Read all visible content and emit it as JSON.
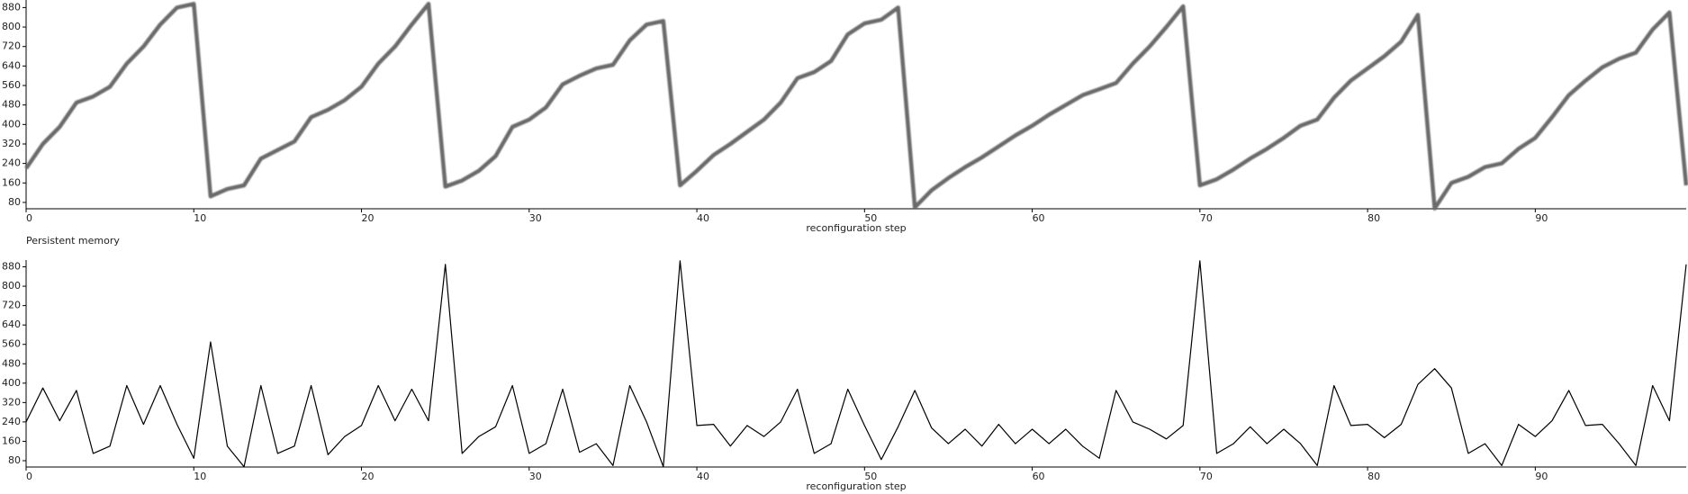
{
  "chart_data": [
    {
      "type": "line",
      "xlabel": "reconfiguration step",
      "color": "#6a6a6a",
      "x": [
        0,
        1,
        2,
        3,
        4,
        5,
        6,
        7,
        8,
        9,
        10,
        11,
        12,
        13,
        14,
        15,
        16,
        17,
        18,
        19,
        20,
        21,
        22,
        23,
        24,
        25,
        26,
        27,
        28,
        29,
        30,
        31,
        32,
        33,
        34,
        35,
        36,
        37,
        38,
        39,
        40,
        41,
        42,
        43,
        44,
        45,
        46,
        47,
        48,
        49,
        50,
        51,
        52,
        53,
        54,
        55,
        56,
        57,
        58,
        59,
        60,
        61,
        62,
        63,
        64,
        65,
        66,
        67,
        68,
        69,
        70,
        71,
        72,
        73,
        74,
        75,
        76,
        77,
        78,
        79,
        80,
        81,
        82,
        83,
        84,
        85,
        86,
        87,
        88,
        89,
        90,
        91,
        92,
        93,
        94,
        95,
        96,
        97,
        98,
        99
      ],
      "values": [
        220,
        320,
        390,
        490,
        515,
        555,
        650,
        720,
        810,
        880,
        895,
        105,
        135,
        150,
        260,
        295,
        330,
        430,
        460,
        500,
        555,
        650,
        720,
        810,
        895,
        145,
        170,
        210,
        270,
        390,
        420,
        470,
        565,
        600,
        630,
        645,
        745,
        810,
        825,
        150,
        210,
        275,
        320,
        370,
        420,
        490,
        590,
        615,
        660,
        770,
        815,
        830,
        880,
        60,
        130,
        180,
        225,
        265,
        310,
        355,
        395,
        440,
        480,
        520,
        545,
        570,
        650,
        720,
        800,
        885,
        150,
        175,
        215,
        260,
        300,
        345,
        395,
        420,
        510,
        580,
        630,
        680,
        740,
        850,
        55,
        160,
        185,
        225,
        240,
        300,
        345,
        430,
        520,
        580,
        635,
        670,
        695,
        790,
        860,
        150
      ],
      "xlim": [
        0,
        99
      ],
      "xticks": [
        0,
        10,
        20,
        30,
        40,
        50,
        60,
        70,
        80,
        90
      ],
      "ylim": [
        54,
        911
      ],
      "yticks": [
        80,
        160,
        240,
        320,
        400,
        480,
        560,
        640,
        720,
        800,
        880
      ]
    },
    {
      "type": "line",
      "title": "Persistent memory",
      "xlabel": "reconfiguration step",
      "color": "#000000",
      "x": [
        0,
        1,
        2,
        3,
        4,
        5,
        6,
        7,
        8,
        9,
        10,
        11,
        12,
        13,
        14,
        15,
        16,
        17,
        18,
        19,
        20,
        21,
        22,
        23,
        24,
        25,
        26,
        27,
        28,
        29,
        30,
        31,
        32,
        33,
        34,
        35,
        36,
        37,
        38,
        39,
        40,
        41,
        42,
        43,
        44,
        45,
        46,
        47,
        48,
        49,
        50,
        51,
        52,
        53,
        54,
        55,
        56,
        57,
        58,
        59,
        60,
        61,
        62,
        63,
        64,
        65,
        66,
        67,
        68,
        69,
        70,
        71,
        72,
        73,
        74,
        75,
        76,
        77,
        78,
        79,
        80,
        81,
        82,
        83,
        84,
        85,
        86,
        87,
        88,
        89,
        90,
        91,
        92,
        93,
        94,
        95,
        96,
        97,
        98,
        99
      ],
      "values": [
        240,
        380,
        245,
        370,
        110,
        140,
        390,
        230,
        390,
        230,
        90,
        570,
        140,
        55,
        390,
        110,
        140,
        390,
        105,
        180,
        225,
        390,
        245,
        375,
        245,
        890,
        110,
        180,
        220,
        390,
        110,
        150,
        375,
        115,
        150,
        60,
        390,
        240,
        55,
        905,
        225,
        230,
        140,
        225,
        180,
        240,
        375,
        110,
        150,
        375,
        225,
        85,
        220,
        370,
        215,
        150,
        210,
        140,
        230,
        150,
        210,
        150,
        210,
        140,
        90,
        370,
        240,
        210,
        170,
        225,
        905,
        110,
        150,
        220,
        150,
        210,
        150,
        60,
        390,
        225,
        230,
        175,
        230,
        395,
        460,
        380,
        110,
        150,
        60,
        230,
        180,
        245,
        370,
        225,
        230,
        150,
        60,
        390,
        245,
        890
      ],
      "xlim": [
        0,
        99
      ],
      "xticks": [
        0,
        10,
        20,
        30,
        40,
        50,
        60,
        70,
        80,
        90
      ],
      "ylim": [
        54,
        908
      ],
      "yticks": [
        80,
        160,
        240,
        320,
        400,
        480,
        560,
        640,
        720,
        800,
        880
      ]
    }
  ]
}
